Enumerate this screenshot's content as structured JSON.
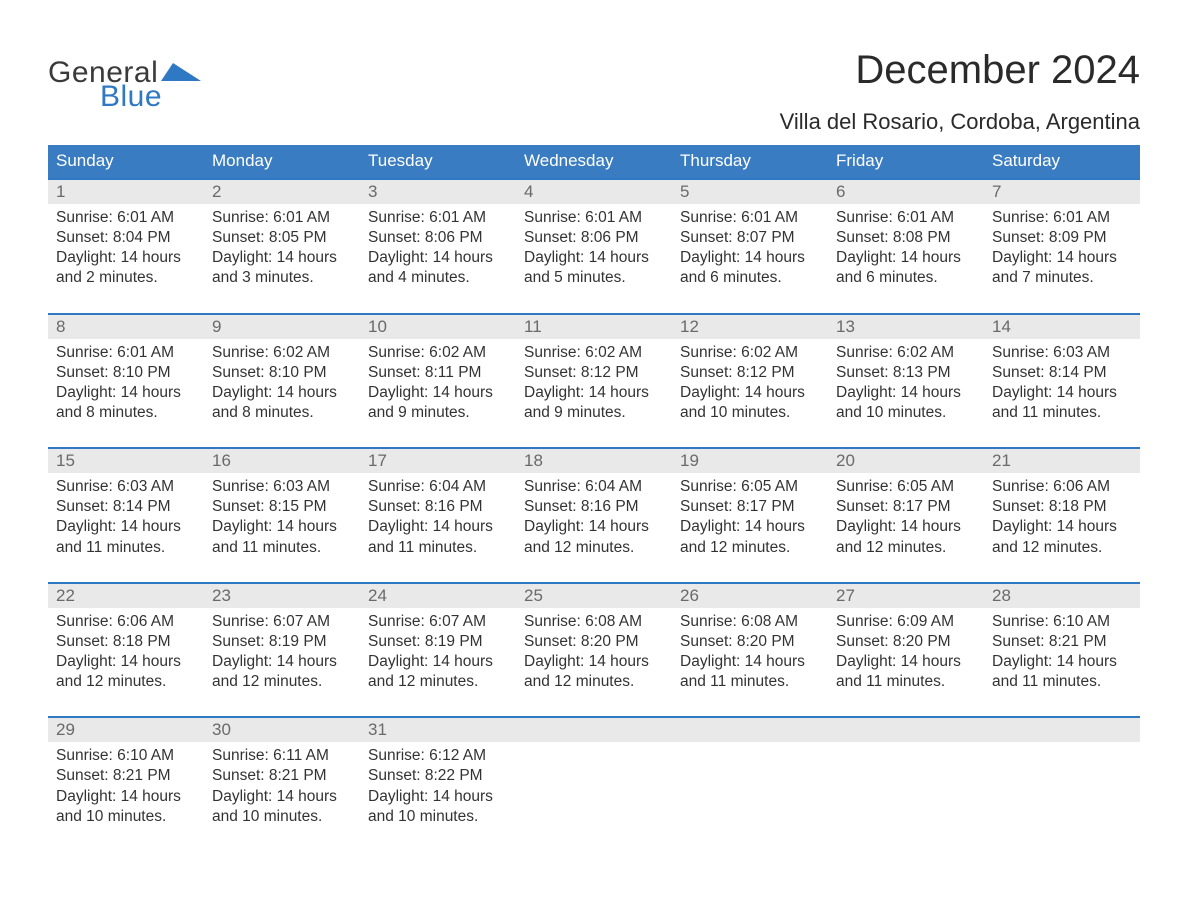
{
  "brand": {
    "word1": "General",
    "word2": "Blue",
    "color_dark": "#3a3a3a",
    "color_blue": "#2f78c4"
  },
  "title": {
    "month": "December 2024",
    "location": "Villa del Rosario, Cordoba, Argentina"
  },
  "calendar": {
    "header_bg": "#3a7cc1",
    "header_fg": "#ffffff",
    "daynum_bg": "#e9e9e9",
    "daynum_border": "#2f78c4",
    "text_color": "#333333",
    "daynum_color": "#6a6a6a",
    "day_names": [
      "Sunday",
      "Monday",
      "Tuesday",
      "Wednesday",
      "Thursday",
      "Friday",
      "Saturday"
    ],
    "weeks": [
      [
        {
          "num": "1",
          "sunrise": "Sunrise: 6:01 AM",
          "sunset": "Sunset: 8:04 PM",
          "daylight1": "Daylight: 14 hours",
          "daylight2": "and 2 minutes."
        },
        {
          "num": "2",
          "sunrise": "Sunrise: 6:01 AM",
          "sunset": "Sunset: 8:05 PM",
          "daylight1": "Daylight: 14 hours",
          "daylight2": "and 3 minutes."
        },
        {
          "num": "3",
          "sunrise": "Sunrise: 6:01 AM",
          "sunset": "Sunset: 8:06 PM",
          "daylight1": "Daylight: 14 hours",
          "daylight2": "and 4 minutes."
        },
        {
          "num": "4",
          "sunrise": "Sunrise: 6:01 AM",
          "sunset": "Sunset: 8:06 PM",
          "daylight1": "Daylight: 14 hours",
          "daylight2": "and 5 minutes."
        },
        {
          "num": "5",
          "sunrise": "Sunrise: 6:01 AM",
          "sunset": "Sunset: 8:07 PM",
          "daylight1": "Daylight: 14 hours",
          "daylight2": "and 6 minutes."
        },
        {
          "num": "6",
          "sunrise": "Sunrise: 6:01 AM",
          "sunset": "Sunset: 8:08 PM",
          "daylight1": "Daylight: 14 hours",
          "daylight2": "and 6 minutes."
        },
        {
          "num": "7",
          "sunrise": "Sunrise: 6:01 AM",
          "sunset": "Sunset: 8:09 PM",
          "daylight1": "Daylight: 14 hours",
          "daylight2": "and 7 minutes."
        }
      ],
      [
        {
          "num": "8",
          "sunrise": "Sunrise: 6:01 AM",
          "sunset": "Sunset: 8:10 PM",
          "daylight1": "Daylight: 14 hours",
          "daylight2": "and 8 minutes."
        },
        {
          "num": "9",
          "sunrise": "Sunrise: 6:02 AM",
          "sunset": "Sunset: 8:10 PM",
          "daylight1": "Daylight: 14 hours",
          "daylight2": "and 8 minutes."
        },
        {
          "num": "10",
          "sunrise": "Sunrise: 6:02 AM",
          "sunset": "Sunset: 8:11 PM",
          "daylight1": "Daylight: 14 hours",
          "daylight2": "and 9 minutes."
        },
        {
          "num": "11",
          "sunrise": "Sunrise: 6:02 AM",
          "sunset": "Sunset: 8:12 PM",
          "daylight1": "Daylight: 14 hours",
          "daylight2": "and 9 minutes."
        },
        {
          "num": "12",
          "sunrise": "Sunrise: 6:02 AM",
          "sunset": "Sunset: 8:12 PM",
          "daylight1": "Daylight: 14 hours",
          "daylight2": "and 10 minutes."
        },
        {
          "num": "13",
          "sunrise": "Sunrise: 6:02 AM",
          "sunset": "Sunset: 8:13 PM",
          "daylight1": "Daylight: 14 hours",
          "daylight2": "and 10 minutes."
        },
        {
          "num": "14",
          "sunrise": "Sunrise: 6:03 AM",
          "sunset": "Sunset: 8:14 PM",
          "daylight1": "Daylight: 14 hours",
          "daylight2": "and 11 minutes."
        }
      ],
      [
        {
          "num": "15",
          "sunrise": "Sunrise: 6:03 AM",
          "sunset": "Sunset: 8:14 PM",
          "daylight1": "Daylight: 14 hours",
          "daylight2": "and 11 minutes."
        },
        {
          "num": "16",
          "sunrise": "Sunrise: 6:03 AM",
          "sunset": "Sunset: 8:15 PM",
          "daylight1": "Daylight: 14 hours",
          "daylight2": "and 11 minutes."
        },
        {
          "num": "17",
          "sunrise": "Sunrise: 6:04 AM",
          "sunset": "Sunset: 8:16 PM",
          "daylight1": "Daylight: 14 hours",
          "daylight2": "and 11 minutes."
        },
        {
          "num": "18",
          "sunrise": "Sunrise: 6:04 AM",
          "sunset": "Sunset: 8:16 PM",
          "daylight1": "Daylight: 14 hours",
          "daylight2": "and 12 minutes."
        },
        {
          "num": "19",
          "sunrise": "Sunrise: 6:05 AM",
          "sunset": "Sunset: 8:17 PM",
          "daylight1": "Daylight: 14 hours",
          "daylight2": "and 12 minutes."
        },
        {
          "num": "20",
          "sunrise": "Sunrise: 6:05 AM",
          "sunset": "Sunset: 8:17 PM",
          "daylight1": "Daylight: 14 hours",
          "daylight2": "and 12 minutes."
        },
        {
          "num": "21",
          "sunrise": "Sunrise: 6:06 AM",
          "sunset": "Sunset: 8:18 PM",
          "daylight1": "Daylight: 14 hours",
          "daylight2": "and 12 minutes."
        }
      ],
      [
        {
          "num": "22",
          "sunrise": "Sunrise: 6:06 AM",
          "sunset": "Sunset: 8:18 PM",
          "daylight1": "Daylight: 14 hours",
          "daylight2": "and 12 minutes."
        },
        {
          "num": "23",
          "sunrise": "Sunrise: 6:07 AM",
          "sunset": "Sunset: 8:19 PM",
          "daylight1": "Daylight: 14 hours",
          "daylight2": "and 12 minutes."
        },
        {
          "num": "24",
          "sunrise": "Sunrise: 6:07 AM",
          "sunset": "Sunset: 8:19 PM",
          "daylight1": "Daylight: 14 hours",
          "daylight2": "and 12 minutes."
        },
        {
          "num": "25",
          "sunrise": "Sunrise: 6:08 AM",
          "sunset": "Sunset: 8:20 PM",
          "daylight1": "Daylight: 14 hours",
          "daylight2": "and 12 minutes."
        },
        {
          "num": "26",
          "sunrise": "Sunrise: 6:08 AM",
          "sunset": "Sunset: 8:20 PM",
          "daylight1": "Daylight: 14 hours",
          "daylight2": "and 11 minutes."
        },
        {
          "num": "27",
          "sunrise": "Sunrise: 6:09 AM",
          "sunset": "Sunset: 8:20 PM",
          "daylight1": "Daylight: 14 hours",
          "daylight2": "and 11 minutes."
        },
        {
          "num": "28",
          "sunrise": "Sunrise: 6:10 AM",
          "sunset": "Sunset: 8:21 PM",
          "daylight1": "Daylight: 14 hours",
          "daylight2": "and 11 minutes."
        }
      ],
      [
        {
          "num": "29",
          "sunrise": "Sunrise: 6:10 AM",
          "sunset": "Sunset: 8:21 PM",
          "daylight1": "Daylight: 14 hours",
          "daylight2": "and 10 minutes."
        },
        {
          "num": "30",
          "sunrise": "Sunrise: 6:11 AM",
          "sunset": "Sunset: 8:21 PM",
          "daylight1": "Daylight: 14 hours",
          "daylight2": "and 10 minutes."
        },
        {
          "num": "31",
          "sunrise": "Sunrise: 6:12 AM",
          "sunset": "Sunset: 8:22 PM",
          "daylight1": "Daylight: 14 hours",
          "daylight2": "and 10 minutes."
        },
        null,
        null,
        null,
        null
      ]
    ]
  }
}
